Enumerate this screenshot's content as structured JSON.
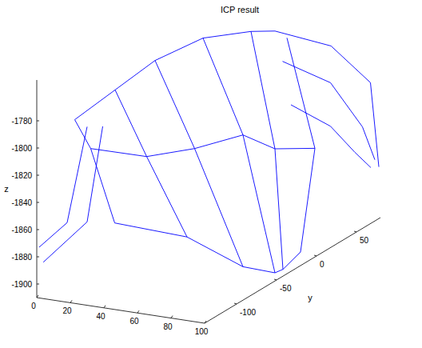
{
  "chart_data": {
    "type": "3d_line",
    "title": "ICP result",
    "ylabel": "y",
    "zlabel": "z",
    "color": "#0000ff",
    "xlim": [
      0,
      100
    ],
    "xticks": [
      0,
      20,
      40,
      60,
      80,
      100
    ],
    "ylim": [
      -140,
      80
    ],
    "yticks": [
      -100,
      -50,
      0,
      50
    ],
    "zlim": [
      -1910,
      -1750
    ],
    "zticks": [
      -1900,
      -1880,
      -1860,
      -1840,
      -1820,
      -1800,
      -1780
    ],
    "series": [
      {
        "values": [
          [
            20,
            -119,
            -1788
          ],
          [
            10,
            -123,
            -1859
          ],
          [
            0,
            -137,
            -1874
          ]
        ]
      },
      {
        "values": [
          [
            2,
            -136,
            -1885
          ],
          [
            20,
            -119,
            -1858
          ],
          [
            25,
            -110,
            -1790
          ]
        ]
      },
      {
        "values": [
          [
            15,
            -124,
            -1782
          ],
          [
            25,
            -125,
            -1801
          ],
          [
            35,
            -116,
            -1857
          ]
        ]
      },
      {
        "values": [
          [
            30,
            -105,
            -1764
          ],
          [
            45,
            -97,
            -1813
          ],
          [
            60,
            -78,
            -1876
          ]
        ]
      },
      {
        "values": [
          [
            30,
            -55,
            -1760
          ],
          [
            55,
            -58,
            -1819
          ],
          [
            80,
            -50,
            -1904
          ]
        ]
      },
      {
        "values": [
          [
            20,
            26,
            -1774
          ],
          [
            50,
            13,
            -1835
          ],
          [
            100,
            -52,
            -1904
          ]
        ]
      },
      {
        "values": [
          [
            30,
            65,
            -1781
          ],
          [
            60,
            32,
            -1850
          ],
          [
            100,
            -42,
            -1905
          ]
        ]
      },
      {
        "values": [
          [
            50,
            68,
            -1783
          ],
          [
            70,
            61,
            -1858
          ],
          [
            100,
            -20,
            -1900
          ]
        ]
      },
      {
        "values": [
          [
            40,
            74,
            -1782
          ],
          [
            72,
            77,
            -1788
          ],
          [
            95,
            78,
            -1811
          ],
          [
            100,
            78,
            -1872
          ]
        ]
      },
      {
        "values": [
          [
            45,
            73,
            -1803
          ],
          [
            75,
            70,
            -1812
          ],
          [
            95,
            68,
            -1840
          ],
          [
            100,
            73,
            -1865
          ]
        ]
      },
      {
        "values": [
          [
            50,
            73,
            -1834
          ],
          [
            75,
            70,
            -1844
          ],
          [
            90,
            69,
            -1860
          ],
          [
            100,
            68,
            -1869
          ]
        ]
      },
      {
        "values": [
          [
            15,
            -124,
            -1782
          ],
          [
            30,
            -105,
            -1764
          ],
          [
            30,
            -55,
            -1760
          ],
          [
            20,
            26,
            -1774
          ],
          [
            30,
            65,
            -1781
          ],
          [
            40,
            74,
            -1782
          ]
        ]
      },
      {
        "values": [
          [
            35,
            -116,
            -1857
          ],
          [
            60,
            -78,
            -1876
          ],
          [
            80,
            -50,
            -1904
          ],
          [
            100,
            -52,
            -1904
          ],
          [
            100,
            -42,
            -1905
          ],
          [
            100,
            -20,
            -1900
          ]
        ]
      },
      {
        "values": [
          [
            25,
            -125,
            -1801
          ],
          [
            45,
            -97,
            -1813
          ],
          [
            55,
            -58,
            -1819
          ],
          [
            50,
            13,
            -1835
          ],
          [
            60,
            32,
            -1850
          ],
          [
            70,
            61,
            -1858
          ]
        ]
      }
    ]
  }
}
